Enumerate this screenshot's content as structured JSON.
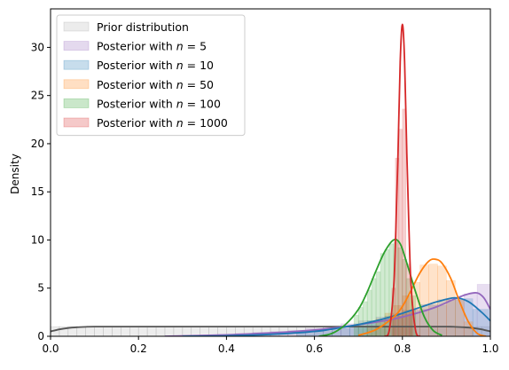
{
  "chart_data": {
    "type": "area",
    "title": "",
    "xlabel": "",
    "ylabel": "Density",
    "xlim": [
      0.0,
      1.0
    ],
    "ylim": [
      0,
      34
    ],
    "x_ticks": [
      "0.0",
      "0.2",
      "0.4",
      "0.6",
      "0.8",
      "1.0"
    ],
    "y_ticks": [
      "0",
      "5",
      "10",
      "15",
      "20",
      "25",
      "30"
    ],
    "legend_position": "top-left",
    "grid": false,
    "series": [
      {
        "name_text": "Prior distribution",
        "name_n": "",
        "hist_color": "#bfbfbf",
        "line_color": "#555555",
        "bins": [
          {
            "x0": 0.0,
            "x1": 0.02,
            "h": 1.0
          },
          {
            "x0": 0.02,
            "x1": 0.04,
            "h": 1.0
          },
          {
            "x0": 0.04,
            "x1": 0.06,
            "h": 1.0
          },
          {
            "x0": 0.06,
            "x1": 0.08,
            "h": 1.0
          },
          {
            "x0": 0.08,
            "x1": 0.1,
            "h": 1.0
          },
          {
            "x0": 0.1,
            "x1": 0.12,
            "h": 1.0
          },
          {
            "x0": 0.12,
            "x1": 0.14,
            "h": 1.0
          },
          {
            "x0": 0.14,
            "x1": 0.16,
            "h": 1.0
          },
          {
            "x0": 0.16,
            "x1": 0.18,
            "h": 1.0
          },
          {
            "x0": 0.18,
            "x1": 0.2,
            "h": 1.0
          },
          {
            "x0": 0.2,
            "x1": 0.22,
            "h": 1.0
          },
          {
            "x0": 0.22,
            "x1": 0.24,
            "h": 1.0
          },
          {
            "x0": 0.24,
            "x1": 0.26,
            "h": 1.0
          },
          {
            "x0": 0.26,
            "x1": 0.28,
            "h": 1.0
          },
          {
            "x0": 0.28,
            "x1": 0.3,
            "h": 1.0
          },
          {
            "x0": 0.3,
            "x1": 0.32,
            "h": 1.0
          },
          {
            "x0": 0.32,
            "x1": 0.34,
            "h": 1.0
          },
          {
            "x0": 0.34,
            "x1": 0.36,
            "h": 1.0
          },
          {
            "x0": 0.36,
            "x1": 0.38,
            "h": 1.0
          },
          {
            "x0": 0.38,
            "x1": 0.4,
            "h": 1.0
          },
          {
            "x0": 0.4,
            "x1": 0.42,
            "h": 1.0
          },
          {
            "x0": 0.42,
            "x1": 0.44,
            "h": 1.0
          },
          {
            "x0": 0.44,
            "x1": 0.46,
            "h": 1.0
          },
          {
            "x0": 0.46,
            "x1": 0.48,
            "h": 1.0
          },
          {
            "x0": 0.48,
            "x1": 0.5,
            "h": 1.0
          },
          {
            "x0": 0.5,
            "x1": 0.52,
            "h": 1.0
          },
          {
            "x0": 0.52,
            "x1": 0.54,
            "h": 1.0
          },
          {
            "x0": 0.54,
            "x1": 0.56,
            "h": 1.0
          },
          {
            "x0": 0.56,
            "x1": 0.58,
            "h": 1.0
          },
          {
            "x0": 0.58,
            "x1": 0.6,
            "h": 1.0
          },
          {
            "x0": 0.6,
            "x1": 0.62,
            "h": 1.0
          },
          {
            "x0": 0.62,
            "x1": 0.64,
            "h": 1.0
          },
          {
            "x0": 0.64,
            "x1": 0.66,
            "h": 1.0
          },
          {
            "x0": 0.66,
            "x1": 0.68,
            "h": 1.0
          },
          {
            "x0": 0.68,
            "x1": 0.7,
            "h": 1.0
          },
          {
            "x0": 0.7,
            "x1": 0.72,
            "h": 1.0
          },
          {
            "x0": 0.72,
            "x1": 0.74,
            "h": 1.0
          },
          {
            "x0": 0.74,
            "x1": 0.76,
            "h": 1.0
          },
          {
            "x0": 0.76,
            "x1": 0.78,
            "h": 1.0
          },
          {
            "x0": 0.78,
            "x1": 0.8,
            "h": 1.0
          },
          {
            "x0": 0.8,
            "x1": 0.82,
            "h": 1.0
          },
          {
            "x0": 0.82,
            "x1": 0.84,
            "h": 1.0
          },
          {
            "x0": 0.84,
            "x1": 0.86,
            "h": 1.0
          },
          {
            "x0": 0.86,
            "x1": 0.88,
            "h": 1.0
          },
          {
            "x0": 0.88,
            "x1": 0.9,
            "h": 1.0
          },
          {
            "x0": 0.9,
            "x1": 0.92,
            "h": 1.0
          },
          {
            "x0": 0.92,
            "x1": 0.94,
            "h": 1.0
          },
          {
            "x0": 0.94,
            "x1": 0.96,
            "h": 1.0
          },
          {
            "x0": 0.96,
            "x1": 0.98,
            "h": 1.0
          },
          {
            "x0": 0.98,
            "x1": 1.0,
            "h": 1.0
          }
        ],
        "curve": [
          [
            0.0,
            0.5
          ],
          [
            0.02,
            0.72
          ],
          [
            0.04,
            0.86
          ],
          [
            0.06,
            0.94
          ],
          [
            0.08,
            0.98
          ],
          [
            0.1,
            1.0
          ],
          [
            0.2,
            1.0
          ],
          [
            0.3,
            1.0
          ],
          [
            0.4,
            1.0
          ],
          [
            0.5,
            1.0
          ],
          [
            0.6,
            1.0
          ],
          [
            0.7,
            1.0
          ],
          [
            0.8,
            1.0
          ],
          [
            0.9,
            1.0
          ],
          [
            0.92,
            0.98
          ],
          [
            0.94,
            0.94
          ],
          [
            0.96,
            0.86
          ],
          [
            0.98,
            0.72
          ],
          [
            1.0,
            0.5
          ]
        ]
      },
      {
        "name_text": "Posterior with ",
        "name_n": "5",
        "hist_color": "#9467bd",
        "line_color": "#9467bd",
        "bins": [
          {
            "x0": 0.26,
            "x1": 0.3,
            "h": 0.05
          },
          {
            "x0": 0.3,
            "x1": 0.34,
            "h": 0.1
          },
          {
            "x0": 0.34,
            "x1": 0.38,
            "h": 0.15
          },
          {
            "x0": 0.38,
            "x1": 0.42,
            "h": 0.2
          },
          {
            "x0": 0.42,
            "x1": 0.46,
            "h": 0.3
          },
          {
            "x0": 0.46,
            "x1": 0.5,
            "h": 0.4
          },
          {
            "x0": 0.5,
            "x1": 0.54,
            "h": 0.5
          },
          {
            "x0": 0.54,
            "x1": 0.58,
            "h": 0.6
          },
          {
            "x0": 0.58,
            "x1": 0.62,
            "h": 0.8
          },
          {
            "x0": 0.62,
            "x1": 0.66,
            "h": 1.0
          },
          {
            "x0": 0.66,
            "x1": 0.7,
            "h": 1.3
          },
          {
            "x0": 0.7,
            "x1": 0.74,
            "h": 1.6
          },
          {
            "x0": 0.74,
            "x1": 0.78,
            "h": 2.0
          },
          {
            "x0": 0.78,
            "x1": 0.82,
            "h": 2.3
          },
          {
            "x0": 0.82,
            "x1": 0.86,
            "h": 2.8
          },
          {
            "x0": 0.86,
            "x1": 0.9,
            "h": 3.2
          },
          {
            "x0": 0.9,
            "x1": 0.94,
            "h": 3.8
          },
          {
            "x0": 0.94,
            "x1": 0.97,
            "h": 4.4
          },
          {
            "x0": 0.97,
            "x1": 1.0,
            "h": 5.4
          }
        ],
        "curve": [
          [
            0.26,
            0.0
          ],
          [
            0.4,
            0.15
          ],
          [
            0.5,
            0.35
          ],
          [
            0.6,
            0.65
          ],
          [
            0.7,
            1.2
          ],
          [
            0.78,
            1.8
          ],
          [
            0.84,
            2.5
          ],
          [
            0.88,
            3.1
          ],
          [
            0.92,
            3.9
          ],
          [
            0.95,
            4.4
          ],
          [
            0.97,
            4.5
          ],
          [
            0.985,
            4.0
          ],
          [
            1.0,
            2.8
          ]
        ]
      },
      {
        "name_text": "Posterior with ",
        "name_n": "10",
        "hist_color": "#1f77b4",
        "line_color": "#1f77b4",
        "bins": [
          {
            "x0": 0.56,
            "x1": 0.6,
            "h": 0.3
          },
          {
            "x0": 0.6,
            "x1": 0.64,
            "h": 0.5
          },
          {
            "x0": 0.64,
            "x1": 0.68,
            "h": 0.8
          },
          {
            "x0": 0.68,
            "x1": 0.72,
            "h": 1.1
          },
          {
            "x0": 0.72,
            "x1": 0.76,
            "h": 1.6
          },
          {
            "x0": 0.76,
            "x1": 0.8,
            "h": 2.1
          },
          {
            "x0": 0.8,
            "x1": 0.84,
            "h": 2.7
          },
          {
            "x0": 0.84,
            "x1": 0.88,
            "h": 3.3
          },
          {
            "x0": 0.88,
            "x1": 0.92,
            "h": 3.8
          },
          {
            "x0": 0.92,
            "x1": 0.96,
            "h": 3.9
          },
          {
            "x0": 0.96,
            "x1": 1.0,
            "h": 2.8
          }
        ],
        "curve": [
          [
            0.3,
            0.0
          ],
          [
            0.4,
            0.05
          ],
          [
            0.5,
            0.2
          ],
          [
            0.6,
            0.5
          ],
          [
            0.66,
            0.9
          ],
          [
            0.72,
            1.4
          ],
          [
            0.78,
            2.1
          ],
          [
            0.84,
            3.0
          ],
          [
            0.88,
            3.6
          ],
          [
            0.92,
            4.0
          ],
          [
            0.95,
            3.6
          ],
          [
            0.98,
            2.5
          ],
          [
            1.0,
            1.6
          ]
        ]
      },
      {
        "name_text": "Posterior with ",
        "name_n": "50",
        "hist_color": "#ff7f0e",
        "line_color": "#ff7f0e",
        "bins": [
          {
            "x0": 0.72,
            "x1": 0.74,
            "h": 1.0
          },
          {
            "x0": 0.74,
            "x1": 0.76,
            "h": 1.8
          },
          {
            "x0": 0.76,
            "x1": 0.78,
            "h": 2.4
          },
          {
            "x0": 0.78,
            "x1": 0.8,
            "h": 3.2
          },
          {
            "x0": 0.8,
            "x1": 0.82,
            "h": 4.2
          },
          {
            "x0": 0.82,
            "x1": 0.84,
            "h": 5.6
          },
          {
            "x0": 0.84,
            "x1": 0.86,
            "h": 7.4
          },
          {
            "x0": 0.86,
            "x1": 0.88,
            "h": 7.5
          },
          {
            "x0": 0.88,
            "x1": 0.9,
            "h": 7.3
          },
          {
            "x0": 0.9,
            "x1": 0.92,
            "h": 5.8
          },
          {
            "x0": 0.92,
            "x1": 0.94,
            "h": 3.8
          },
          {
            "x0": 0.94,
            "x1": 0.96,
            "h": 1.5
          }
        ],
        "curve": [
          [
            0.7,
            0.1
          ],
          [
            0.74,
            0.7
          ],
          [
            0.78,
            2.0
          ],
          [
            0.8,
            3.1
          ],
          [
            0.82,
            4.8
          ],
          [
            0.84,
            6.6
          ],
          [
            0.86,
            7.8
          ],
          [
            0.875,
            8.0
          ],
          [
            0.89,
            7.6
          ],
          [
            0.91,
            6.0
          ],
          [
            0.93,
            3.6
          ],
          [
            0.95,
            1.5
          ],
          [
            0.97,
            0.3
          ],
          [
            0.99,
            0.0
          ]
        ]
      },
      {
        "name_text": "Posterior with ",
        "name_n": "100",
        "hist_color": "#2ca02c",
        "line_color": "#2ca02c",
        "bins": [
          {
            "x0": 0.69,
            "x1": 0.7,
            "h": 2.2
          },
          {
            "x0": 0.7,
            "x1": 0.71,
            "h": 3.0
          },
          {
            "x0": 0.71,
            "x1": 0.72,
            "h": 3.6
          },
          {
            "x0": 0.72,
            "x1": 0.73,
            "h": 4.8
          },
          {
            "x0": 0.73,
            "x1": 0.74,
            "h": 6.0
          },
          {
            "x0": 0.74,
            "x1": 0.75,
            "h": 6.7
          },
          {
            "x0": 0.75,
            "x1": 0.76,
            "h": 8.6
          },
          {
            "x0": 0.76,
            "x1": 0.77,
            "h": 9.0
          },
          {
            "x0": 0.77,
            "x1": 0.78,
            "h": 9.6
          },
          {
            "x0": 0.78,
            "x1": 0.79,
            "h": 9.8
          },
          {
            "x0": 0.79,
            "x1": 0.8,
            "h": 9.2
          },
          {
            "x0": 0.8,
            "x1": 0.81,
            "h": 8.0
          },
          {
            "x0": 0.81,
            "x1": 0.82,
            "h": 6.0
          },
          {
            "x0": 0.82,
            "x1": 0.83,
            "h": 4.2
          }
        ],
        "curve": [
          [
            0.61,
            0.0
          ],
          [
            0.64,
            0.3
          ],
          [
            0.67,
            1.2
          ],
          [
            0.7,
            2.8
          ],
          [
            0.72,
            4.6
          ],
          [
            0.74,
            6.8
          ],
          [
            0.76,
            8.8
          ],
          [
            0.78,
            10.0
          ],
          [
            0.795,
            9.6
          ],
          [
            0.81,
            7.6
          ],
          [
            0.83,
            4.6
          ],
          [
            0.85,
            2.0
          ],
          [
            0.87,
            0.6
          ],
          [
            0.89,
            0.1
          ]
        ]
      },
      {
        "name_text": "Posterior with ",
        "name_n": "1000",
        "hist_color": "#d62728",
        "line_color": "#d62728",
        "bins": [
          {
            "x0": 0.776,
            "x1": 0.784,
            "h": 5.0
          },
          {
            "x0": 0.784,
            "x1": 0.792,
            "h": 18.5
          },
          {
            "x0": 0.792,
            "x1": 0.8,
            "h": 21.5
          },
          {
            "x0": 0.8,
            "x1": 0.808,
            "h": 23.6
          },
          {
            "x0": 0.808,
            "x1": 0.816,
            "h": 7.5
          },
          {
            "x0": 0.816,
            "x1": 0.824,
            "h": 2.5
          }
        ],
        "curve": [
          [
            0.76,
            0.0
          ],
          [
            0.77,
            0.6
          ],
          [
            0.78,
            5.0
          ],
          [
            0.785,
            11.0
          ],
          [
            0.79,
            19.0
          ],
          [
            0.795,
            28.5
          ],
          [
            0.8,
            32.4
          ],
          [
            0.805,
            28.5
          ],
          [
            0.81,
            19.0
          ],
          [
            0.815,
            11.0
          ],
          [
            0.82,
            5.0
          ],
          [
            0.83,
            0.6
          ],
          [
            0.84,
            0.0
          ]
        ]
      }
    ]
  }
}
